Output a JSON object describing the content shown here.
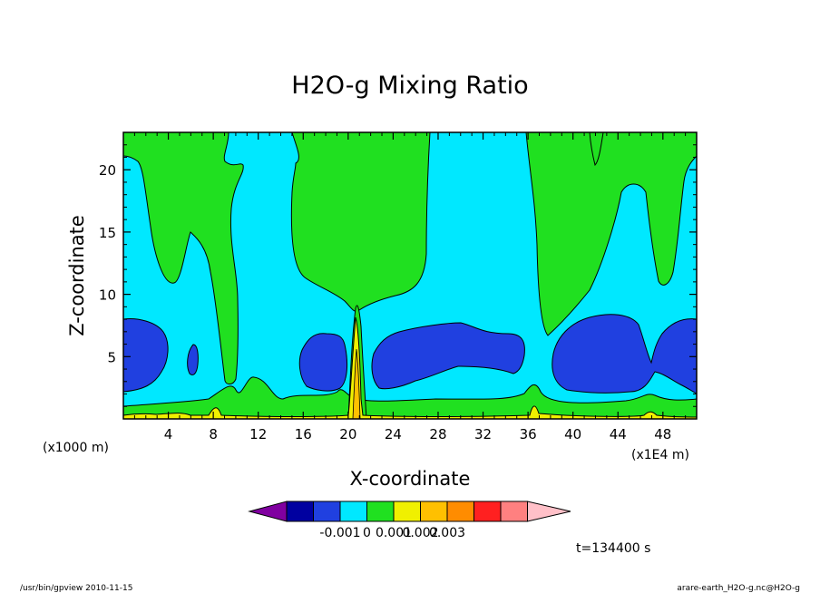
{
  "chart_data": {
    "type": "heatmap",
    "title": "H2O-g Mixing Ratio",
    "xlabel": "X-coordinate",
    "ylabel": "Z-coordinate",
    "x_unit_left": "(x1000 m)",
    "x_unit_right": "(x1E4 m)",
    "xlim": [
      0,
      51
    ],
    "ylim": [
      0,
      23
    ],
    "xticks": [
      "4",
      "8",
      "12",
      "16",
      "20",
      "24",
      "28",
      "32",
      "36",
      "40",
      "44",
      "48"
    ],
    "yticks": [
      "5",
      "10",
      "15",
      "20"
    ],
    "colorbar": {
      "colors": [
        "#8000a0",
        "#0000a0",
        "#2040e0",
        "#00e8ff",
        "#20e020",
        "#f0f000",
        "#ffc000",
        "#ff8c00",
        "#ff2020",
        "#ff8080",
        "#ffc0c8"
      ],
      "labels": [
        "-0.001",
        "0",
        "0.001",
        "0.002",
        "0.003"
      ]
    },
    "time_label": "t=134400 s"
  },
  "footer": {
    "left": "/usr/bin/gpview   2010-11-15",
    "right": "arare-earth_H2O-g.nc@H2O-g"
  }
}
